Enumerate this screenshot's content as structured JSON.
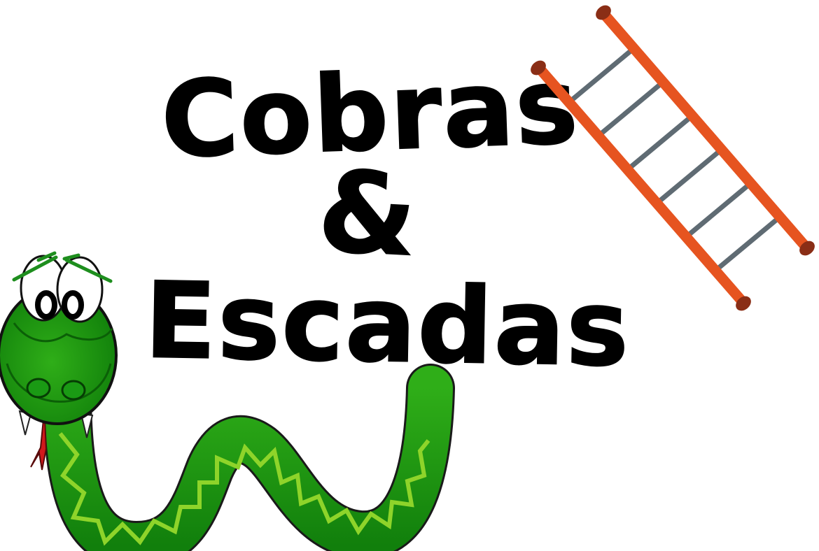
{
  "title": {
    "line1": "Cobras",
    "line2": "&",
    "line3": "Escadas"
  },
  "colors": {
    "ladder_rails": "#e65420",
    "ladder_rungs": "#5f6b73",
    "ladder_caps": "#8a2e16",
    "snake_body": "#138f0e",
    "snake_body_light": "#2fae18",
    "snake_pattern": "#8ed42a",
    "snake_eyebrows": "#1e8e1e",
    "snake_tongue": "#d1191c",
    "text": "#000000"
  },
  "icons": [
    "ladder-icon",
    "snake-icon"
  ]
}
